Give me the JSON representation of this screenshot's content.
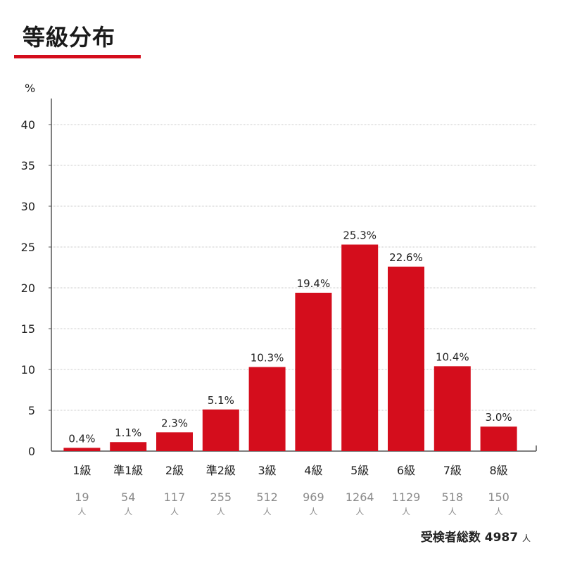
{
  "title": "等級分布",
  "chart_data": {
    "type": "bar",
    "ylabel": "%",
    "ylim": [
      0,
      40
    ],
    "yticks": [
      0,
      5,
      10,
      15,
      20,
      25,
      30,
      35,
      40
    ],
    "categories": [
      "1級",
      "準1級",
      "2級",
      "準2級",
      "3級",
      "4級",
      "5級",
      "6級",
      "7級",
      "8級"
    ],
    "values": [
      0.4,
      1.1,
      2.3,
      5.1,
      10.3,
      19.4,
      25.3,
      22.6,
      10.4,
      3.0
    ],
    "value_labels": [
      "0.4%",
      "1.1%",
      "2.3%",
      "5.1%",
      "10.3%",
      "19.4%",
      "25.3%",
      "22.6%",
      "10.4%",
      "3.0%"
    ],
    "counts": [
      "19",
      "54",
      "117",
      "255",
      "512",
      "969",
      "1264",
      "1129",
      "518",
      "150"
    ],
    "count_unit": "人",
    "grid": true,
    "bar_color": "#d40d1c"
  },
  "total": {
    "label": "受検者総数",
    "value": "4987",
    "unit": "人"
  }
}
